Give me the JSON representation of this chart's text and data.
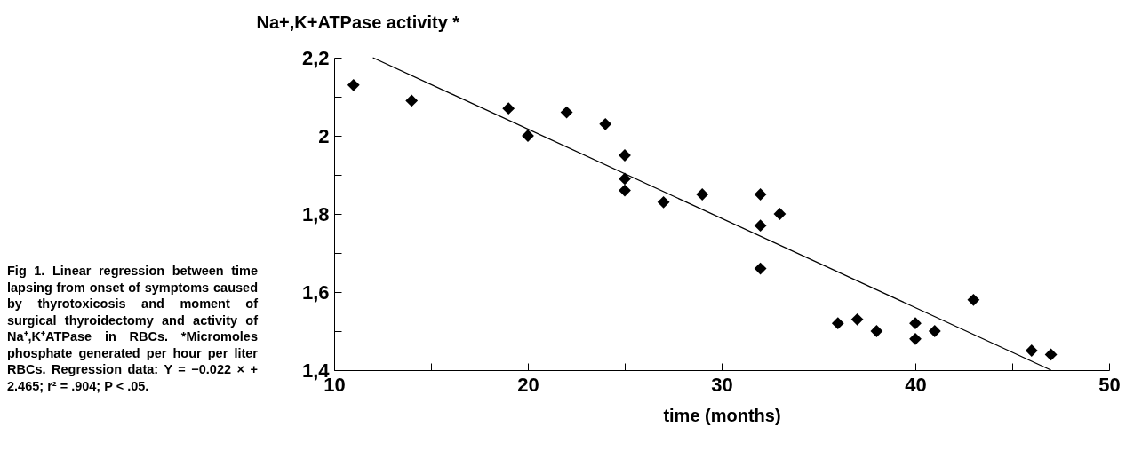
{
  "chart_data": {
    "type": "scatter",
    "ylabel": "Na+,K+ATPase activity *",
    "xlabel": "time (months)",
    "annotations": [
      "Fig 1. Linear regression between time lapsing from onset of symptoms caused by thyrotoxicosis and moment of surgical thyroidectomy and activity of Na⁺,K⁺ATPase in RBCs. *Micromoles phosphate generated per hour per liter RBCs. Regression data: Y = −0.022 × + 2.465; r² = .904; P < .05."
    ],
    "xlim": [
      10,
      50
    ],
    "xticks": [
      10,
      {
        "value": 15,
        "label": null
      },
      20,
      {
        "value": 25,
        "label": null
      },
      30,
      {
        "value": 35,
        "label": null
      },
      40,
      {
        "value": 45,
        "label": null
      },
      50
    ],
    "ylim": [
      1.4,
      2.2
    ],
    "yticks": [
      {
        "value": 1.4,
        "label": "1,4"
      },
      {
        "value": 1.5,
        "label": null
      },
      {
        "value": 1.6,
        "label": "1,6"
      },
      {
        "value": 1.7,
        "label": null
      },
      {
        "value": 1.8,
        "label": "1,8"
      },
      {
        "value": 1.9,
        "label": null
      },
      2,
      {
        "value": 2.1,
        "label": null
      },
      {
        "value": 2.2,
        "label": "2,2"
      }
    ],
    "grid": false,
    "series": [
      {
        "marker": "diamond",
        "color": "#000000",
        "x": [
          11,
          14,
          19,
          20,
          22,
          24,
          25,
          25,
          25,
          27,
          29,
          32,
          32,
          32,
          33,
          36,
          37,
          38,
          40,
          40,
          41,
          43,
          46,
          47
        ],
        "values": [
          2.13,
          2.09,
          2.07,
          2.0,
          2.06,
          2.03,
          1.95,
          1.89,
          1.86,
          1.83,
          1.85,
          1.85,
          1.77,
          1.66,
          1.8,
          1.52,
          1.53,
          1.5,
          1.52,
          1.48,
          1.5,
          1.58,
          1.45,
          1.44
        ]
      },
      {
        "type": "line",
        "color": "#000000",
        "line_style": "solid",
        "x": [
          12,
          47
        ],
        "values": [
          2.2,
          1.4
        ]
      }
    ]
  }
}
